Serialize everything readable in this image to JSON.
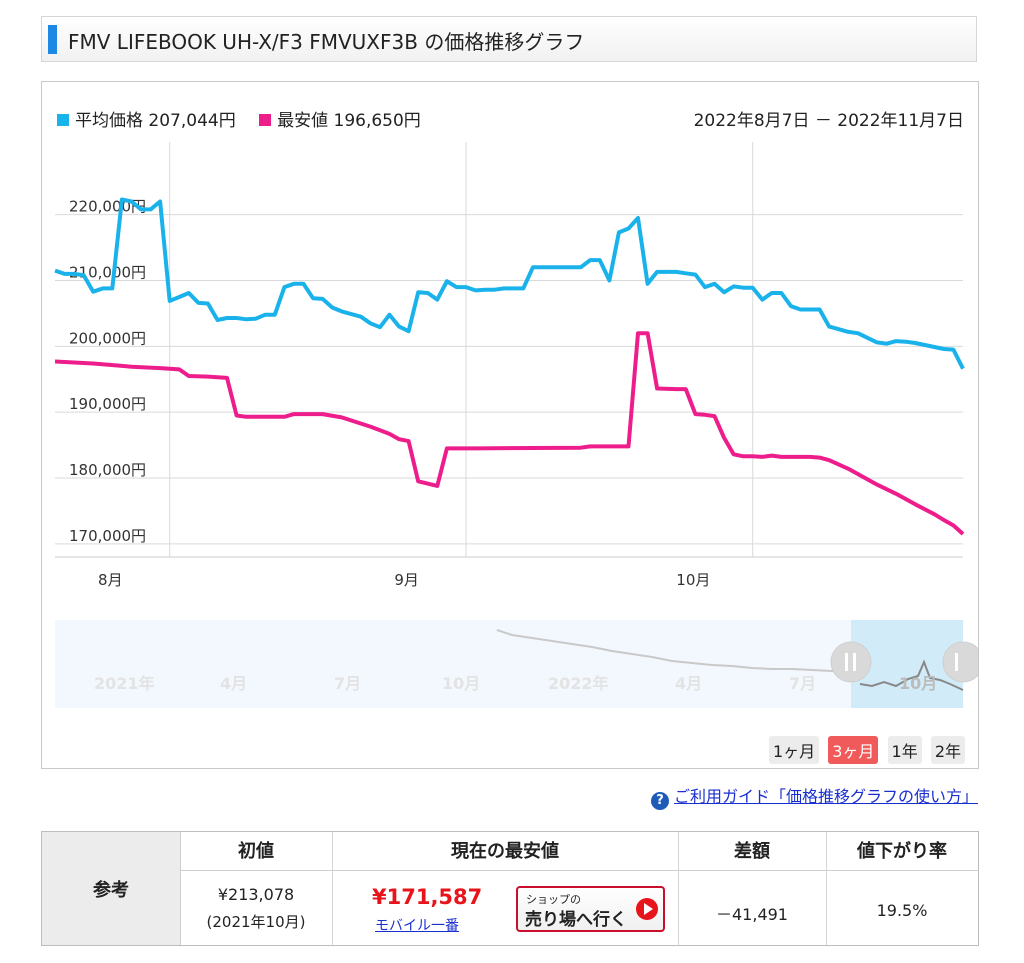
{
  "title": "FMV LIFEBOOK UH-X/F3 FMVUXF3B の価格推移グラフ",
  "legend": {
    "avg_label": "平均価格 207,044円",
    "min_label": "最安値 196,650円",
    "range_text": "2022年8月7日 － 2022年11月7日"
  },
  "colors": {
    "avg": "#1ab2ea",
    "min": "#ed1e8c",
    "accent": "#1e88e5",
    "active": "#f05a5a"
  },
  "range_buttons": [
    {
      "label": "1ヶ月",
      "active": false
    },
    {
      "label": "3ヶ月",
      "active": true
    },
    {
      "label": "1年",
      "active": false
    },
    {
      "label": "2年",
      "active": false
    }
  ],
  "navigator": {
    "labels": [
      "2021年",
      "4月",
      "7月",
      "10月",
      "2022年",
      "4月",
      "7月",
      "10月"
    ]
  },
  "guide": {
    "icon": "help-icon",
    "text": "ご利用ガイド「価格推移グラフの使い方」"
  },
  "reference": {
    "label": "参考",
    "headers": [
      "初値",
      "現在の最安値",
      "差額",
      "値下がり率"
    ],
    "initial_price": "¥213,078",
    "initial_date": "(2021年10月)",
    "current_price": "¥171,587",
    "shop_name": "モバイル一番",
    "shop_button_top": "ショップの",
    "shop_button_main": "売り場へ行く",
    "diff": "－41,491",
    "drop_rate": "19.5%"
  },
  "chart_data": {
    "type": "line",
    "ylim": [
      168000,
      228000
    ],
    "yticks": [
      170000,
      180000,
      190000,
      200000,
      210000,
      220000
    ],
    "ytick_labels": [
      "170,000円",
      "180,000円",
      "190,000円",
      "200,000円",
      "210,000円",
      "220,000円"
    ],
    "xlim": [
      "2022-08-04",
      "2022-11-07"
    ],
    "month_ticks": [
      {
        "date": "2022-08-01",
        "label": "8月"
      },
      {
        "date": "2022-09-01",
        "label": "9月"
      },
      {
        "date": "2022-10-01",
        "label": "10月"
      }
    ],
    "grid_dates": [
      "2022-08-16",
      "2022-09-16",
      "2022-10-16"
    ],
    "series": [
      {
        "name": "平均価格",
        "points": [
          [
            "2022-08-04",
            211500
          ],
          [
            "2022-08-05",
            211000
          ],
          [
            "2022-08-06",
            211000
          ],
          [
            "2022-08-07",
            210800
          ],
          [
            "2022-08-08",
            208300
          ],
          [
            "2022-08-09",
            208800
          ],
          [
            "2022-08-10",
            208800
          ],
          [
            "2022-08-11",
            222300
          ],
          [
            "2022-08-12",
            222000
          ],
          [
            "2022-08-13",
            220800
          ],
          [
            "2022-08-14",
            220800
          ],
          [
            "2022-08-15",
            222000
          ],
          [
            "2022-08-16",
            206900
          ],
          [
            "2022-08-17",
            207500
          ],
          [
            "2022-08-18",
            208100
          ],
          [
            "2022-08-19",
            206600
          ],
          [
            "2022-08-20",
            206500
          ],
          [
            "2022-08-21",
            204000
          ],
          [
            "2022-08-22",
            204300
          ],
          [
            "2022-08-23",
            204300
          ],
          [
            "2022-08-24",
            204100
          ],
          [
            "2022-08-25",
            204200
          ],
          [
            "2022-08-26",
            204800
          ],
          [
            "2022-08-27",
            204800
          ],
          [
            "2022-08-28",
            209000
          ],
          [
            "2022-08-29",
            209500
          ],
          [
            "2022-08-30",
            209500
          ],
          [
            "2022-08-31",
            207300
          ],
          [
            "2022-09-01",
            207200
          ],
          [
            "2022-09-02",
            205900
          ],
          [
            "2022-09-03",
            205300
          ],
          [
            "2022-09-04",
            204900
          ],
          [
            "2022-09-05",
            204500
          ],
          [
            "2022-09-06",
            203500
          ],
          [
            "2022-09-07",
            202900
          ],
          [
            "2022-09-08",
            204800
          ],
          [
            "2022-09-09",
            203000
          ],
          [
            "2022-09-10",
            202300
          ],
          [
            "2022-09-11",
            208200
          ],
          [
            "2022-09-12",
            208100
          ],
          [
            "2022-09-13",
            207100
          ],
          [
            "2022-09-14",
            209900
          ],
          [
            "2022-09-15",
            209000
          ],
          [
            "2022-09-16",
            209000
          ],
          [
            "2022-09-17",
            208500
          ],
          [
            "2022-09-18",
            208600
          ],
          [
            "2022-09-19",
            208600
          ],
          [
            "2022-09-20",
            208800
          ],
          [
            "2022-09-21",
            208800
          ],
          [
            "2022-09-22",
            208800
          ],
          [
            "2022-09-23",
            212000
          ],
          [
            "2022-09-24",
            212000
          ],
          [
            "2022-09-25",
            212000
          ],
          [
            "2022-09-26",
            212000
          ],
          [
            "2022-09-27",
            212000
          ],
          [
            "2022-09-28",
            212000
          ],
          [
            "2022-09-29",
            213100
          ],
          [
            "2022-09-30",
            213100
          ],
          [
            "2022-10-01",
            210000
          ],
          [
            "2022-10-02",
            217300
          ],
          [
            "2022-10-03",
            217900
          ],
          [
            "2022-10-04",
            219500
          ],
          [
            "2022-10-05",
            209500
          ],
          [
            "2022-10-06",
            211300
          ],
          [
            "2022-10-07",
            211300
          ],
          [
            "2022-10-08",
            211300
          ],
          [
            "2022-10-09",
            211100
          ],
          [
            "2022-10-10",
            210900
          ],
          [
            "2022-10-11",
            209000
          ],
          [
            "2022-10-12",
            209500
          ],
          [
            "2022-10-13",
            208200
          ],
          [
            "2022-10-14",
            209100
          ],
          [
            "2022-10-15",
            208900
          ],
          [
            "2022-10-16",
            208900
          ],
          [
            "2022-10-17",
            207100
          ],
          [
            "2022-10-18",
            208100
          ],
          [
            "2022-10-19",
            208100
          ],
          [
            "2022-10-20",
            206100
          ],
          [
            "2022-10-21",
            205600
          ],
          [
            "2022-10-22",
            205600
          ],
          [
            "2022-10-23",
            205600
          ],
          [
            "2022-10-24",
            203000
          ],
          [
            "2022-10-25",
            202600
          ],
          [
            "2022-10-26",
            202200
          ],
          [
            "2022-10-27",
            202000
          ],
          [
            "2022-10-28",
            201300
          ],
          [
            "2022-10-29",
            200600
          ],
          [
            "2022-10-30",
            200400
          ],
          [
            "2022-10-31",
            200800
          ],
          [
            "2022-11-01",
            200700
          ],
          [
            "2022-11-02",
            200500
          ],
          [
            "2022-11-03",
            200200
          ],
          [
            "2022-11-04",
            199900
          ],
          [
            "2022-11-05",
            199600
          ],
          [
            "2022-11-06",
            199500
          ],
          [
            "2022-11-07",
            196600
          ]
        ]
      },
      {
        "name": "最安値",
        "points": [
          [
            "2022-08-04",
            197700
          ],
          [
            "2022-08-08",
            197400
          ],
          [
            "2022-08-12",
            196900
          ],
          [
            "2022-08-15",
            196700
          ],
          [
            "2022-08-17",
            196500
          ],
          [
            "2022-08-18",
            195500
          ],
          [
            "2022-08-20",
            195400
          ],
          [
            "2022-08-22",
            195200
          ],
          [
            "2022-08-23",
            189500
          ],
          [
            "2022-08-24",
            189300
          ],
          [
            "2022-08-28",
            189300
          ],
          [
            "2022-08-29",
            189700
          ],
          [
            "2022-09-01",
            189700
          ],
          [
            "2022-09-03",
            189200
          ],
          [
            "2022-09-06",
            187800
          ],
          [
            "2022-09-08",
            186700
          ],
          [
            "2022-09-09",
            185900
          ],
          [
            "2022-09-10",
            185600
          ],
          [
            "2022-09-11",
            179500
          ],
          [
            "2022-09-13",
            178800
          ],
          [
            "2022-09-14",
            184500
          ],
          [
            "2022-09-17",
            184500
          ],
          [
            "2022-09-28",
            184600
          ],
          [
            "2022-09-29",
            184800
          ],
          [
            "2022-10-02",
            184800
          ],
          [
            "2022-10-03",
            184800
          ],
          [
            "2022-10-04",
            202000
          ],
          [
            "2022-10-05",
            202000
          ],
          [
            "2022-10-06",
            193600
          ],
          [
            "2022-10-08",
            193500
          ],
          [
            "2022-10-09",
            193500
          ],
          [
            "2022-10-10",
            189700
          ],
          [
            "2022-10-11",
            189600
          ],
          [
            "2022-10-12",
            189400
          ],
          [
            "2022-10-13",
            186100
          ],
          [
            "2022-10-14",
            183600
          ],
          [
            "2022-10-15",
            183300
          ],
          [
            "2022-10-16",
            183300
          ],
          [
            "2022-10-17",
            183200
          ],
          [
            "2022-10-18",
            183400
          ],
          [
            "2022-10-19",
            183200
          ],
          [
            "2022-10-20",
            183200
          ],
          [
            "2022-10-21",
            183200
          ],
          [
            "2022-10-22",
            183200
          ],
          [
            "2022-10-23",
            183100
          ],
          [
            "2022-10-24",
            182700
          ],
          [
            "2022-10-26",
            181400
          ],
          [
            "2022-10-29",
            179000
          ],
          [
            "2022-10-31",
            177600
          ],
          [
            "2022-11-02",
            176000
          ],
          [
            "2022-11-04",
            174500
          ],
          [
            "2022-11-05",
            173600
          ],
          [
            "2022-11-06",
            172800
          ],
          [
            "2022-11-07",
            171500
          ]
        ]
      }
    ]
  }
}
